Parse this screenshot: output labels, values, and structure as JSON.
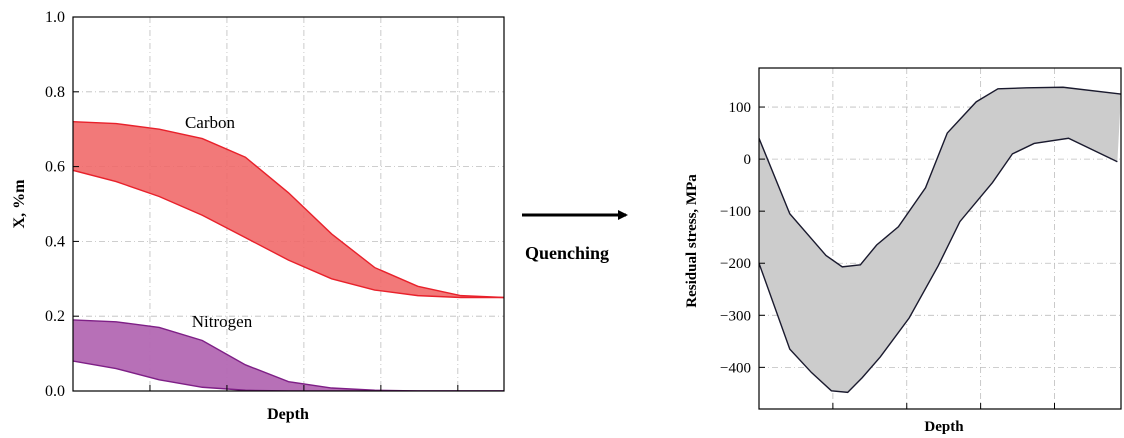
{
  "chart_data": [
    {
      "type": "area",
      "title": "",
      "xlabel": "Depth",
      "ylabel": "X, %m",
      "ylim": [
        0,
        1
      ],
      "yticks": [
        "0.0",
        "0.2",
        "0.4",
        "0.6",
        "0.8",
        "1.0"
      ],
      "x_tick_labels_shown": false,
      "grid": true,
      "x": [
        0,
        0.1,
        0.2,
        0.3,
        0.4,
        0.5,
        0.6,
        0.7,
        0.8,
        0.9,
        1.0
      ],
      "series": [
        {
          "name": "Carbon",
          "color": "#f06666",
          "edge_color": "#e8212b",
          "upper": [
            0.72,
            0.715,
            0.7,
            0.675,
            0.625,
            0.53,
            0.42,
            0.33,
            0.28,
            0.255,
            0.25
          ],
          "lower": [
            0.59,
            0.56,
            0.52,
            0.47,
            0.41,
            0.35,
            0.3,
            0.27,
            0.255,
            0.25,
            0.25
          ]
        },
        {
          "name": "Nitrogen",
          "color": "#b368b3",
          "edge_color": "#7e1f86",
          "upper": [
            0.19,
            0.185,
            0.17,
            0.135,
            0.07,
            0.025,
            0.008,
            0.002,
            0.0,
            0.0,
            0.0
          ],
          "lower": [
            0.08,
            0.06,
            0.03,
            0.01,
            0.002,
            0.0,
            0.0,
            0.0,
            0.0,
            0.0,
            0.0
          ]
        }
      ]
    },
    {
      "type": "area",
      "title": "",
      "xlabel": "Depth",
      "ylabel": "Residual stress, MPa",
      "ylim": [
        -480,
        175
      ],
      "yticks": [
        "100",
        "0",
        "−100",
        "−200",
        "−300",
        "−400"
      ],
      "x_tick_labels_shown": false,
      "grid": true,
      "series": [
        {
          "name": "",
          "color": "#cccccc",
          "edge_color": "#1a1a2e",
          "upper": {
            "x": [
              0,
              0.085,
              0.185,
              0.23,
              0.28,
              0.325,
              0.385,
              0.46,
              0.52,
              0.6,
              0.66,
              0.74,
              0.84,
              1.0
            ],
            "y": [
              40,
              -105,
              -185,
              -207,
              -203,
              -165,
              -130,
              -55,
              50,
              110,
              135,
              137,
              138,
              125
            ]
          },
          "lower": {
            "x": [
              0,
              0.085,
              0.145,
              0.2,
              0.245,
              0.285,
              0.335,
              0.415,
              0.495,
              0.555,
              0.645,
              0.7,
              0.76,
              0.855,
              0.99
            ],
            "y": [
              -200,
              -365,
              -410,
              -445,
              -448,
              -420,
              -380,
              -305,
              -205,
              -120,
              -45,
              10,
              30,
              40,
              -5
            ]
          }
        }
      ]
    }
  ],
  "annotation": {
    "label": "Quenching"
  }
}
